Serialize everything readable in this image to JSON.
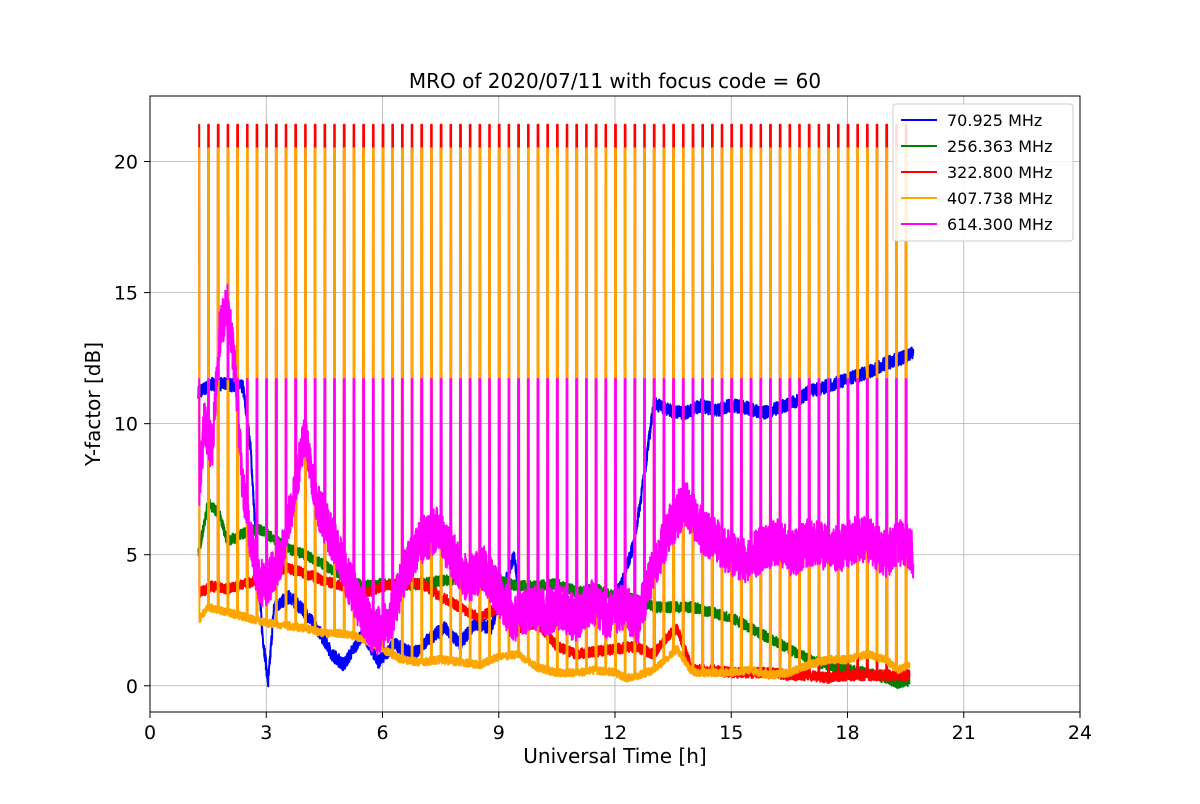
{
  "chart_data": {
    "type": "line",
    "title": "MRO of 2020/07/11 with focus code = 60",
    "xlabel": "Universal Time [h]",
    "ylabel": "Y-factor [dB]",
    "xlim": [
      0,
      24
    ],
    "ylim": [
      -1.0,
      22.5
    ],
    "xticks": [
      0,
      3,
      6,
      9,
      12,
      15,
      18,
      21,
      24
    ],
    "yticks": [
      0,
      5,
      10,
      15,
      20
    ],
    "grid": true,
    "legend_position": "top-right",
    "notes": "Each series also contains periodic calibration spikes (approximately every 0.25 h from 1.25 h to 19.6 h) reaching the listed spike_peak value.",
    "series": [
      {
        "name": " 70.925 MHz",
        "color": "#0000ff",
        "spike_peak": null,
        "x": [
          1.25,
          1.6,
          2.0,
          2.4,
          2.6,
          2.75,
          2.9,
          3.05,
          3.2,
          3.6,
          4.0,
          4.4,
          4.7,
          5.0,
          5.5,
          5.9,
          6.3,
          6.8,
          7.2,
          7.6,
          8.0,
          8.4,
          8.8,
          9.1,
          9.4,
          9.6,
          9.8,
          10.2,
          10.6,
          11.0,
          11.4,
          11.8,
          12.2,
          12.5,
          12.8,
          13.0,
          13.4,
          13.8,
          14.2,
          14.6,
          15.0,
          15.4,
          15.8,
          16.2,
          16.6,
          17.0,
          17.4,
          17.8,
          18.2,
          18.6,
          19.0,
          19.4,
          19.7
        ],
        "y": [
          11.2,
          11.5,
          11.5,
          11.4,
          9.0,
          5.0,
          2.0,
          0.1,
          3.0,
          3.4,
          2.8,
          2.0,
          1.2,
          0.8,
          2.0,
          0.9,
          1.6,
          1.2,
          1.8,
          2.2,
          1.6,
          2.4,
          2.2,
          3.6,
          5.0,
          2.4,
          3.2,
          2.5,
          2.8,
          3.0,
          3.2,
          2.8,
          4.0,
          5.5,
          8.5,
          10.8,
          10.5,
          10.4,
          10.7,
          10.5,
          10.7,
          10.6,
          10.4,
          10.6,
          10.8,
          11.2,
          11.4,
          11.6,
          11.8,
          12.0,
          12.3,
          12.5,
          12.7
        ]
      },
      {
        "name": "256.363 MHz",
        "color": "#008000",
        "spike_peak": null,
        "x": [
          1.25,
          1.5,
          1.8,
          2.0,
          2.4,
          2.8,
          3.2,
          3.6,
          4.0,
          4.5,
          5.0,
          5.5,
          6.0,
          6.5,
          7.0,
          7.5,
          8.0,
          8.5,
          9.0,
          9.5,
          10.0,
          10.5,
          11.0,
          11.5,
          12.0,
          12.5,
          13.0,
          13.5,
          14.0,
          14.5,
          15.0,
          15.5,
          16.0,
          16.5,
          17.0,
          17.5,
          18.0,
          18.5,
          19.0,
          19.3,
          19.6
        ],
        "y": [
          5.0,
          7.0,
          6.5,
          5.5,
          5.8,
          6.0,
          5.6,
          5.2,
          5.0,
          4.6,
          4.2,
          3.8,
          3.9,
          3.8,
          3.9,
          4.0,
          4.1,
          4.2,
          4.0,
          3.8,
          3.8,
          3.9,
          3.6,
          3.7,
          3.4,
          3.3,
          3.0,
          3.0,
          3.0,
          2.8,
          2.6,
          2.2,
          1.8,
          1.4,
          1.0,
          0.8,
          0.6,
          0.5,
          0.3,
          0.1,
          0.2
        ]
      },
      {
        "name": "322.800 MHz",
        "color": "#ff0000",
        "spike_peak": 21.4,
        "x": [
          1.25,
          1.6,
          2.0,
          2.5,
          3.0,
          3.5,
          4.0,
          4.5,
          5.0,
          5.5,
          6.0,
          6.5,
          7.0,
          7.5,
          8.0,
          8.5,
          9.0,
          9.5,
          10.0,
          10.5,
          11.0,
          11.5,
          12.0,
          12.5,
          13.0,
          13.3,
          13.6,
          14.0,
          14.5,
          15.0,
          15.5,
          16.0,
          16.5,
          17.0,
          17.5,
          18.0,
          18.5,
          19.0,
          19.6
        ],
        "y": [
          3.5,
          3.8,
          3.7,
          3.9,
          4.2,
          4.5,
          4.3,
          4.0,
          3.8,
          3.5,
          3.8,
          3.9,
          3.9,
          3.4,
          3.0,
          2.6,
          3.0,
          2.2,
          2.4,
          1.5,
          1.2,
          1.3,
          1.4,
          1.5,
          1.2,
          1.8,
          2.2,
          0.6,
          0.6,
          0.5,
          0.5,
          0.5,
          0.4,
          0.4,
          0.3,
          0.4,
          0.4,
          0.4,
          0.4
        ]
      },
      {
        "name": "407.738 MHz",
        "color": "#ffa500",
        "spike_peak": 20.5,
        "x": [
          1.25,
          1.5,
          2.0,
          2.5,
          3.0,
          3.5,
          4.0,
          4.5,
          5.0,
          5.5,
          6.0,
          6.5,
          7.0,
          7.5,
          8.0,
          8.5,
          9.0,
          9.5,
          10.0,
          10.5,
          11.0,
          11.5,
          12.0,
          12.3,
          12.6,
          13.0,
          13.3,
          13.6,
          14.0,
          14.5,
          15.0,
          15.5,
          16.0,
          16.5,
          17.0,
          17.5,
          18.0,
          18.5,
          19.0,
          19.3,
          19.6
        ],
        "y": [
          2.5,
          3.0,
          2.8,
          2.6,
          2.4,
          2.3,
          2.2,
          2.0,
          2.0,
          1.8,
          1.4,
          1.0,
          0.9,
          1.0,
          0.9,
          0.8,
          1.1,
          1.2,
          0.7,
          0.5,
          0.5,
          0.6,
          0.5,
          0.3,
          0.4,
          0.6,
          1.0,
          1.4,
          0.5,
          0.5,
          0.5,
          0.6,
          0.4,
          0.5,
          0.8,
          1.0,
          1.0,
          1.2,
          1.0,
          0.6,
          0.8
        ]
      },
      {
        "name": "614.300 MHz",
        "color": "#ff00ff",
        "spike_peak": 11.7,
        "x": [
          1.25,
          1.4,
          1.6,
          1.8,
          2.0,
          2.2,
          2.4,
          2.6,
          2.8,
          3.0,
          3.4,
          3.8,
          4.0,
          4.3,
          4.6,
          5.0,
          5.4,
          5.8,
          6.2,
          6.6,
          7.0,
          7.4,
          7.8,
          8.2,
          8.6,
          9.0,
          9.4,
          9.8,
          10.2,
          10.6,
          11.0,
          11.4,
          11.8,
          12.2,
          12.6,
          13.0,
          13.4,
          13.8,
          14.2,
          14.6,
          15.0,
          15.4,
          15.8,
          16.2,
          16.6,
          17.0,
          17.4,
          17.8,
          18.2,
          18.6,
          19.0,
          19.4,
          19.7
        ],
        "y": [
          7.0,
          10.0,
          9.0,
          13.5,
          14.5,
          12.0,
          7.5,
          5.5,
          4.0,
          3.8,
          5.0,
          8.0,
          9.5,
          7.0,
          6.0,
          4.5,
          3.0,
          2.0,
          2.5,
          4.5,
          5.5,
          6.0,
          5.0,
          4.0,
          4.5,
          3.5,
          2.5,
          3.0,
          2.8,
          3.0,
          2.5,
          3.2,
          2.6,
          3.0,
          2.5,
          4.5,
          6.0,
          7.0,
          6.0,
          5.5,
          5.0,
          4.8,
          5.2,
          5.5,
          5.0,
          5.5,
          5.3,
          5.2,
          5.6,
          5.5,
          5.0,
          5.5,
          5.0
        ]
      }
    ]
  }
}
